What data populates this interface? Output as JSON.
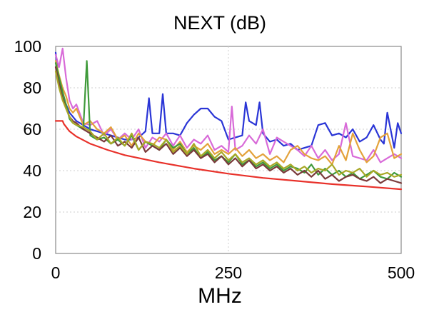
{
  "chart_data": {
    "type": "line",
    "title": "NEXT (dB)",
    "xlabel": "MHz",
    "ylabel": "",
    "xlim": [
      0,
      500
    ],
    "ylim": [
      0,
      100
    ],
    "x_ticks": [
      0,
      250,
      500
    ],
    "y_ticks": [
      0,
      20,
      40,
      60,
      80,
      100
    ],
    "grid": true,
    "legend": "none",
    "limit_line": {
      "color": "#e8312a",
      "x": [
        0,
        10,
        12,
        20,
        30,
        50,
        75,
        100,
        150,
        200,
        250,
        300,
        350,
        400,
        450,
        500
      ],
      "y": [
        64,
        64,
        62.5,
        59,
        56.5,
        53,
        50,
        47.5,
        44,
        41,
        38.5,
        36.5,
        35,
        33.5,
        32.3,
        31
      ]
    },
    "series": [
      {
        "color": "#2a35d6",
        "x": [
          0,
          5,
          10,
          15,
          20,
          25,
          30,
          40,
          50,
          60,
          70,
          80,
          90,
          100,
          110,
          120,
          130,
          135,
          140,
          150,
          155,
          160,
          170,
          180,
          190,
          200,
          210,
          220,
          230,
          240,
          250,
          260,
          270,
          275,
          280,
          290,
          295,
          300,
          310,
          320,
          330,
          340,
          350,
          360,
          370,
          380,
          390,
          400,
          410,
          420,
          430,
          440,
          450,
          460,
          470,
          475,
          480,
          490,
          495,
          500
        ],
        "y": [
          97,
          82,
          75,
          72,
          68,
          66,
          64,
          62,
          60,
          59,
          58,
          57,
          56,
          55,
          55,
          56,
          59,
          75,
          58,
          58,
          77,
          58,
          58,
          57,
          63,
          67,
          70,
          70,
          66,
          64,
          55,
          56,
          57,
          73,
          64,
          62,
          73,
          58,
          54,
          55,
          52,
          53,
          50,
          51,
          52,
          62,
          63,
          57,
          58,
          56,
          60,
          54,
          56,
          62,
          55,
          53,
          68,
          51,
          63,
          58
        ]
      },
      {
        "color": "#d86ad8",
        "x": [
          0,
          5,
          10,
          15,
          20,
          25,
          30,
          40,
          50,
          60,
          70,
          80,
          90,
          100,
          110,
          120,
          130,
          140,
          150,
          160,
          170,
          180,
          190,
          200,
          210,
          220,
          230,
          240,
          250,
          255,
          260,
          270,
          280,
          290,
          300,
          310,
          320,
          330,
          340,
          350,
          360,
          370,
          380,
          390,
          400,
          410,
          420,
          430,
          440,
          450,
          460,
          470,
          480,
          490,
          500
        ],
        "y": [
          96,
          90,
          99,
          85,
          74,
          70,
          72,
          63,
          62,
          64,
          57,
          60,
          55,
          58,
          55,
          60,
          51,
          56,
          54,
          58,
          52,
          57,
          51,
          55,
          53,
          57,
          50,
          52,
          49,
          71,
          50,
          52,
          57,
          53,
          60,
          48,
          56,
          54,
          52,
          50,
          47,
          52,
          46,
          50,
          45,
          48,
          63,
          47,
          46,
          45,
          50,
          44,
          46,
          48,
          46
        ]
      },
      {
        "color": "#e3a23a",
        "x": [
          0,
          5,
          10,
          15,
          20,
          25,
          30,
          40,
          50,
          60,
          70,
          80,
          90,
          100,
          110,
          120,
          130,
          140,
          150,
          160,
          170,
          180,
          190,
          200,
          210,
          220,
          230,
          240,
          250,
          260,
          270,
          280,
          290,
          300,
          310,
          320,
          330,
          340,
          350,
          360,
          370,
          380,
          390,
          400,
          410,
          420,
          430,
          440,
          450,
          460,
          470,
          480,
          490,
          500
        ],
        "y": [
          93,
          86,
          80,
          76,
          70,
          68,
          70,
          62,
          64,
          60,
          58,
          61,
          55,
          57,
          52,
          58,
          54,
          52,
          56,
          55,
          50,
          54,
          49,
          52,
          50,
          53,
          48,
          50,
          48,
          51,
          47,
          50,
          46,
          48,
          45,
          47,
          44,
          50,
          52,
          48,
          46,
          45,
          47,
          43,
          52,
          45,
          58,
          50,
          44,
          47,
          56,
          58,
          46,
          48
        ]
      },
      {
        "color": "#3f9a3a",
        "x": [
          0,
          5,
          10,
          15,
          20,
          25,
          30,
          40,
          45,
          50,
          60,
          70,
          80,
          90,
          100,
          110,
          120,
          130,
          140,
          150,
          160,
          170,
          180,
          190,
          200,
          210,
          220,
          230,
          240,
          250,
          260,
          270,
          280,
          290,
          300,
          310,
          320,
          330,
          340,
          350,
          360,
          370,
          380,
          390,
          400,
          410,
          420,
          430,
          440,
          450,
          460,
          470,
          480,
          490,
          500
        ],
        "y": [
          92,
          85,
          78,
          72,
          65,
          63,
          62,
          60,
          93,
          57,
          55,
          56,
          53,
          55,
          52,
          57,
          50,
          54,
          52,
          50,
          55,
          51,
          53,
          48,
          51,
          46,
          49,
          45,
          47,
          44,
          48,
          43,
          45,
          42,
          44,
          41,
          43,
          40,
          42,
          41,
          39,
          43,
          38,
          41,
          38,
          40,
          37,
          39,
          36,
          38,
          40,
          37,
          36,
          39,
          37
        ]
      },
      {
        "color": "#7a3a3a",
        "x": [
          0,
          5,
          10,
          15,
          20,
          25,
          30,
          40,
          50,
          60,
          70,
          80,
          90,
          100,
          110,
          120,
          130,
          140,
          150,
          160,
          170,
          180,
          190,
          200,
          210,
          220,
          230,
          240,
          250,
          260,
          270,
          280,
          290,
          300,
          310,
          320,
          330,
          340,
          350,
          360,
          370,
          380,
          390,
          400,
          410,
          420,
          430,
          440,
          450,
          460,
          470,
          480,
          490,
          500
        ],
        "y": [
          90,
          82,
          75,
          70,
          66,
          64,
          63,
          60,
          58,
          56,
          54,
          57,
          52,
          54,
          51,
          56,
          49,
          52,
          50,
          53,
          48,
          51,
          47,
          50,
          46,
          48,
          44,
          47,
          43,
          46,
          42,
          45,
          41,
          43,
          40,
          42,
          39,
          41,
          38,
          40,
          37,
          40,
          36,
          38,
          35,
          37,
          38,
          36,
          35,
          37,
          34,
          36,
          35,
          34
        ]
      },
      {
        "color": "#a8a826",
        "x": [
          0,
          5,
          10,
          15,
          20,
          25,
          30,
          40,
          50,
          60,
          70,
          80,
          90,
          100,
          110,
          120,
          130,
          140,
          150,
          160,
          170,
          180,
          190,
          200,
          210,
          220,
          230,
          240,
          250,
          260,
          270,
          280,
          290,
          300,
          310,
          320,
          330,
          340,
          350,
          360,
          370,
          380,
          390,
          400,
          410,
          420,
          430,
          440,
          450,
          460,
          470,
          480,
          490,
          500
        ],
        "y": [
          88,
          80,
          74,
          70,
          66,
          63,
          62,
          61,
          59,
          55,
          58,
          53,
          56,
          52,
          58,
          50,
          54,
          53,
          51,
          55,
          49,
          52,
          48,
          53,
          47,
          50,
          46,
          49,
          45,
          48,
          44,
          46,
          43,
          45,
          42,
          44,
          41,
          43,
          40,
          42,
          39,
          41,
          40,
          43,
          38,
          40,
          39,
          41,
          37,
          40,
          38,
          39,
          37,
          38
        ]
      }
    ]
  }
}
